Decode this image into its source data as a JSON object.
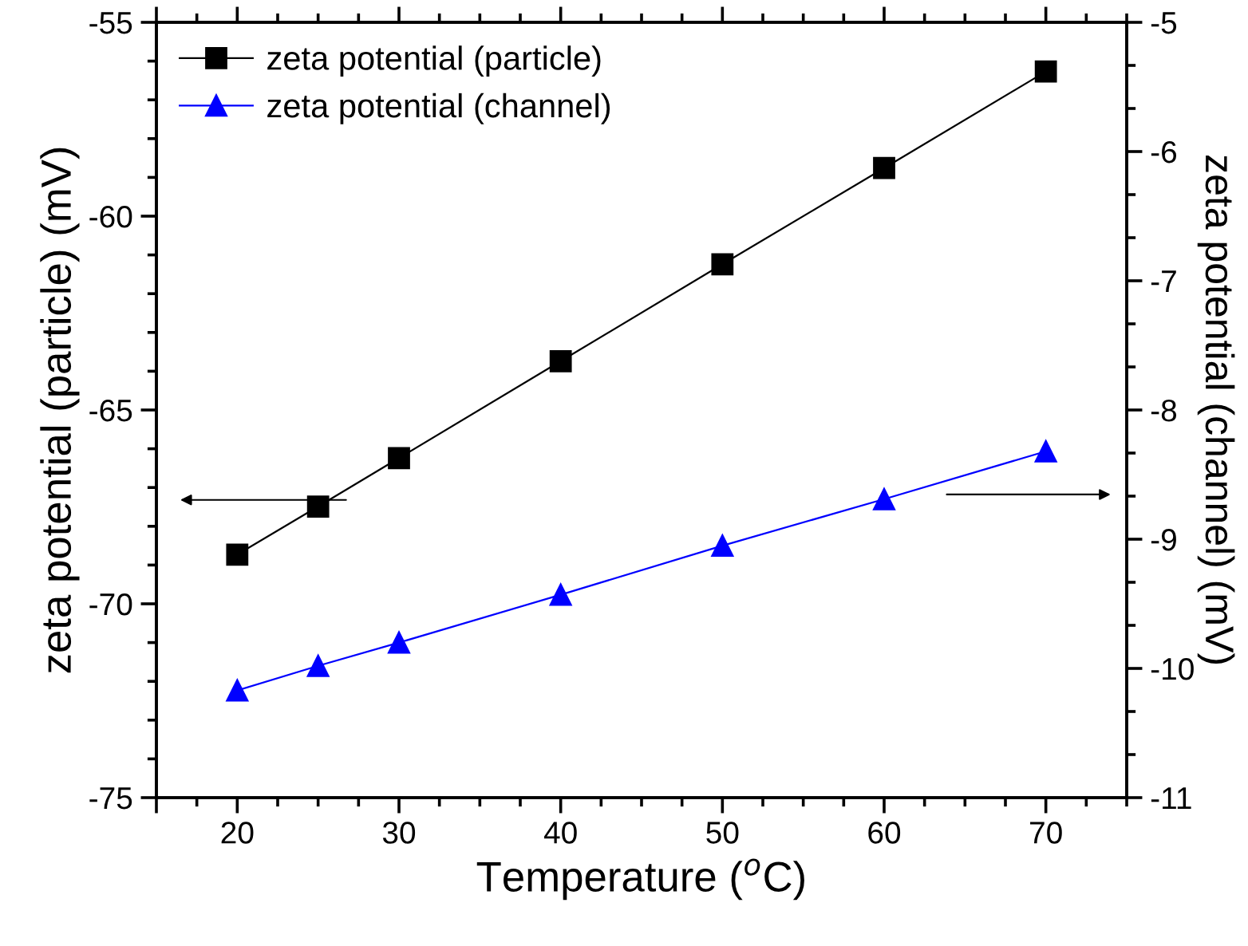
{
  "chart_data": {
    "type": "line",
    "xlabel": "Temperature ($^{o}$C)",
    "ylabel": "zeta potential (particle) (mV)",
    "y2label": "zeta potential (channel) (mV)",
    "x": [
      20,
      25,
      30,
      40,
      50,
      60,
      70
    ],
    "series": [
      {
        "name": "zeta potential (particle)",
        "color": "#000000",
        "marker": "square",
        "values": [
          -68.73,
          -67.49,
          -66.24,
          -63.74,
          -61.24,
          -58.76,
          -56.27
        ]
      },
      {
        "name": "zeta potential (channel)",
        "color": "#0000ff",
        "marker": "triangle",
        "axis": "y2",
        "values": [
          -10.17,
          -9.98,
          -9.8,
          -9.43,
          -9.05,
          -8.69,
          -8.32
        ]
      }
    ],
    "xlim": [
      15,
      75
    ],
    "xticks": [
      {
        "value": 15,
        "label": null
      },
      20,
      30,
      40,
      50,
      60,
      70
    ],
    "ylim": [
      -75,
      -55
    ],
    "yticks": [
      -75,
      -70,
      -65,
      -60,
      -55
    ],
    "y2lim": [
      -11,
      -5
    ],
    "y2ticks": [
      -11,
      -10,
      -9,
      -8,
      -7,
      -6,
      -5
    ],
    "legend": "top left",
    "grid": false,
    "line_style": "solid"
  }
}
